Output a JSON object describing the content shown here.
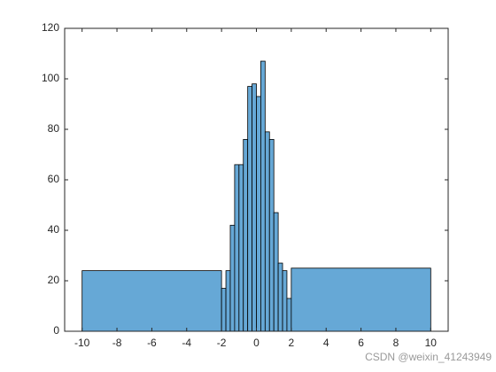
{
  "chart_data": {
    "type": "histogram",
    "bins": [
      -10,
      -2,
      -1.75,
      -1.5,
      -1.25,
      -1,
      -0.75,
      -0.5,
      -0.25,
      0,
      0.25,
      0.5,
      0.75,
      1,
      1.25,
      1.5,
      1.75,
      2,
      10
    ],
    "values": [
      24,
      17,
      24,
      42,
      66,
      66,
      76,
      97,
      98,
      93,
      107,
      79,
      76,
      47,
      27,
      24,
      13,
      25
    ],
    "color": "#66a8d6",
    "xlim": [
      -11,
      11
    ],
    "xticks": [
      -10,
      -8,
      -6,
      -4,
      -2,
      0,
      2,
      4,
      6,
      8,
      10
    ],
    "ylim": [
      0,
      120
    ],
    "yticks": [
      0,
      20,
      40,
      60,
      80,
      100,
      120
    ],
    "watermark": "CSDN @weixin_41243949"
  }
}
